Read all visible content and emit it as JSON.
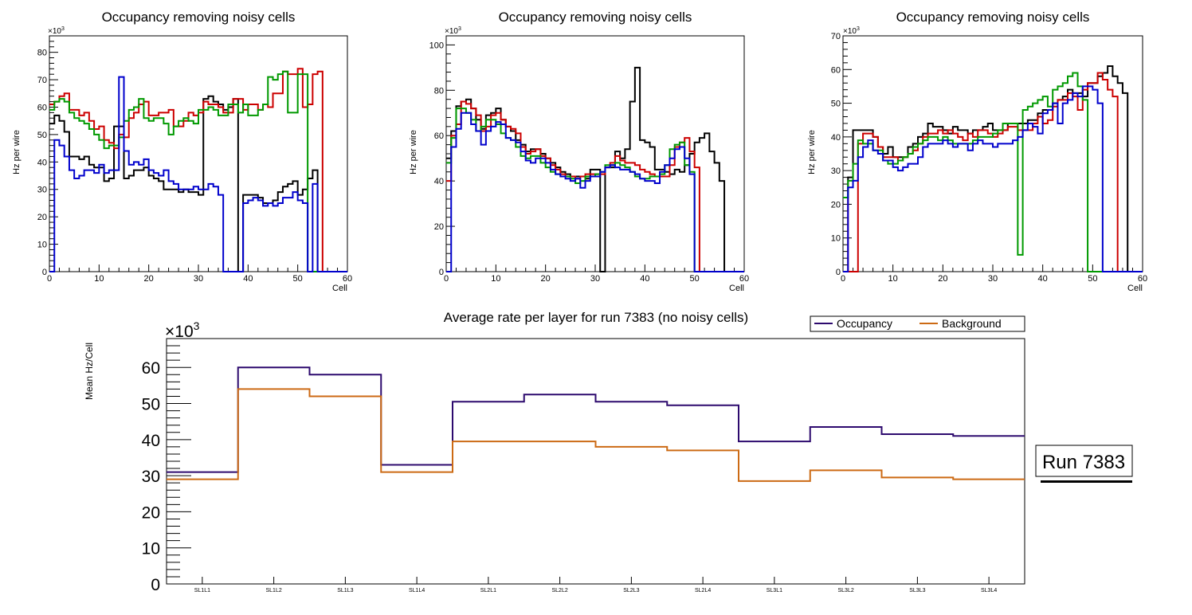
{
  "panels": [
    {
      "title": "Occupancy removing noisy cells",
      "ylabel": "Hz per wire",
      "xlabel": "Cell",
      "yexp": "×10",
      "yexp_power": "3"
    },
    {
      "title": "Occupancy removing noisy cells",
      "ylabel": "Hz per wire",
      "xlabel": "Cell",
      "yexp": "×10",
      "yexp_power": "3"
    },
    {
      "title": "Occupancy removing noisy cells",
      "ylabel": "Hz per wire",
      "xlabel": "Cell",
      "yexp": "×10",
      "yexp_power": "3"
    }
  ],
  "summary": {
    "title": "Average rate per layer for run 7383 (no noisy cells)",
    "ylabel": "Mean Hz/Cell",
    "yexp": "×10",
    "yexp_power": "3",
    "legend": [
      {
        "label": "Occupancy",
        "color": "#2d0a6e"
      },
      {
        "label": "Background",
        "color": "#cc6a14"
      }
    ],
    "run_label": "Run 7383"
  },
  "chart_data": [
    {
      "type": "line",
      "style": "step-histogram",
      "title": "Occupancy removing noisy cells",
      "xlabel": "Cell",
      "ylabel": "Hz per wire (×10^3)",
      "xlim": [
        0,
        60
      ],
      "ylim": [
        0,
        86
      ],
      "xticks": [
        0,
        10,
        20,
        30,
        40,
        50,
        60
      ],
      "yticks": [
        0,
        10,
        20,
        30,
        40,
        50,
        60,
        70,
        80
      ],
      "x_bin_start": 0,
      "x_bin_width": 1,
      "series": [
        {
          "name": "layer-black",
          "color": "#000000",
          "values": [
            54,
            57,
            55,
            51,
            42,
            42,
            41,
            42,
            39,
            38,
            38,
            33,
            34,
            53,
            53,
            34,
            35,
            37,
            37,
            38,
            35,
            34,
            33,
            30,
            30,
            30,
            29,
            30,
            29,
            29,
            28,
            63,
            64,
            62,
            61,
            59,
            60,
            63,
            0,
            28,
            28,
            28,
            27,
            25,
            25,
            26,
            29,
            31,
            32,
            33,
            28,
            30,
            34,
            37,
            0,
            0,
            0,
            0,
            0,
            0
          ]
        },
        {
          "name": "layer-red",
          "color": "#cc0000",
          "values": [
            61,
            62,
            64,
            65,
            59,
            59,
            57,
            58,
            55,
            52,
            53,
            48,
            47,
            45,
            50,
            49,
            56,
            58,
            61,
            62,
            57,
            57,
            58,
            58,
            59,
            53,
            53,
            55,
            58,
            57,
            58,
            62,
            61,
            61,
            60,
            58,
            58,
            63,
            63,
            59,
            61,
            61,
            59,
            61,
            60,
            65,
            65,
            73,
            72,
            72,
            74,
            60,
            61,
            72,
            73,
            0,
            0,
            0,
            0,
            0
          ]
        },
        {
          "name": "layer-green",
          "color": "#009900",
          "values": [
            59,
            62,
            63,
            62,
            58,
            56,
            55,
            54,
            52,
            50,
            48,
            45,
            46,
            46,
            49,
            55,
            59,
            60,
            63,
            56,
            55,
            56,
            56,
            54,
            50,
            53,
            55,
            56,
            55,
            54,
            59,
            59,
            60,
            59,
            57,
            57,
            61,
            61,
            58,
            61,
            57,
            57,
            59,
            61,
            71,
            70,
            72,
            73,
            58,
            58,
            72,
            72,
            0,
            0,
            0,
            0,
            0,
            0,
            0,
            0
          ]
        },
        {
          "name": "layer-blue",
          "color": "#0000cc",
          "values": [
            0,
            48,
            46,
            42,
            37,
            34,
            35,
            37,
            37,
            36,
            39,
            36,
            37,
            37,
            71,
            44,
            39,
            40,
            39,
            41,
            37,
            36,
            35,
            37,
            33,
            32,
            30,
            30,
            30,
            31,
            30,
            30,
            32,
            31,
            28,
            0,
            0,
            0,
            0,
            25,
            26,
            27,
            26,
            24,
            25,
            24,
            25,
            27,
            27,
            29,
            26,
            25,
            0,
            32,
            0,
            0,
            0,
            0,
            0,
            0
          ]
        }
      ]
    },
    {
      "type": "line",
      "style": "step-histogram",
      "title": "Occupancy removing noisy cells",
      "xlabel": "Cell",
      "ylabel": "Hz per wire (×10^3)",
      "xlim": [
        0,
        60
      ],
      "ylim": [
        0,
        104
      ],
      "xticks": [
        0,
        10,
        20,
        30,
        40,
        50,
        60
      ],
      "yticks": [
        0,
        20,
        40,
        60,
        80,
        100
      ],
      "x_bin_start": 0,
      "x_bin_width": 1,
      "series": [
        {
          "name": "layer-black",
          "color": "#000000",
          "values": [
            50,
            62,
            73,
            75,
            76,
            72,
            67,
            63,
            69,
            70,
            72,
            67,
            64,
            62,
            58,
            56,
            53,
            54,
            54,
            52,
            50,
            48,
            46,
            44,
            43,
            42,
            42,
            42,
            41,
            45,
            45,
            0,
            46,
            46,
            53,
            50,
            54,
            75,
            90,
            58,
            57,
            55,
            45,
            45,
            44,
            43,
            45,
            44,
            47,
            52,
            57,
            59,
            61,
            53,
            48,
            40,
            0,
            0,
            0,
            0
          ]
        },
        {
          "name": "layer-red",
          "color": "#cc0000",
          "values": [
            40,
            60,
            65,
            75,
            74,
            72,
            69,
            62,
            64,
            69,
            70,
            67,
            64,
            63,
            61,
            55,
            52,
            53,
            54,
            51,
            50,
            47,
            45,
            43,
            42,
            42,
            41,
            42,
            43,
            43,
            43,
            43,
            46,
            48,
            51,
            49,
            48,
            48,
            47,
            45,
            44,
            43,
            42,
            42,
            42,
            47,
            55,
            57,
            59,
            53,
            46,
            0,
            0,
            0,
            0,
            0,
            0,
            0,
            0,
            0
          ]
        },
        {
          "name": "layer-green",
          "color": "#009900",
          "values": [
            48,
            59,
            72,
            72,
            70,
            67,
            62,
            64,
            67,
            67,
            65,
            61,
            59,
            58,
            55,
            51,
            50,
            51,
            51,
            48,
            46,
            44,
            43,
            42,
            42,
            41,
            39,
            40,
            42,
            42,
            43,
            44,
            47,
            47,
            48,
            47,
            46,
            44,
            42,
            41,
            41,
            42,
            42,
            43,
            47,
            54,
            56,
            57,
            47,
            44,
            0,
            0,
            0,
            0,
            0,
            0,
            0,
            0,
            0,
            0
          ]
        },
        {
          "name": "layer-blue",
          "color": "#0000cc",
          "values": [
            0,
            55,
            63,
            70,
            70,
            65,
            62,
            56,
            62,
            64,
            66,
            65,
            59,
            58,
            57,
            53,
            49,
            48,
            50,
            50,
            48,
            45,
            43,
            42,
            41,
            40,
            41,
            37,
            40,
            42,
            42,
            44,
            46,
            47,
            46,
            45,
            45,
            44,
            43,
            41,
            40,
            40,
            39,
            44,
            47,
            50,
            54,
            55,
            50,
            43,
            0,
            0,
            0,
            0,
            0,
            0,
            0,
            0,
            0,
            0
          ]
        }
      ]
    },
    {
      "type": "line",
      "style": "step-histogram",
      "title": "Occupancy removing noisy cells",
      "xlabel": "Cell",
      "ylabel": "Hz per wire (×10^3)",
      "xlim": [
        0,
        60
      ],
      "ylim": [
        0,
        70
      ],
      "xticks": [
        0,
        10,
        20,
        30,
        40,
        50,
        60
      ],
      "yticks": [
        0,
        10,
        20,
        30,
        40,
        50,
        60,
        70
      ],
      "x_bin_start": 0,
      "x_bin_width": 1,
      "series": [
        {
          "name": "layer-black",
          "color": "#000000",
          "values": [
            22,
            28,
            42,
            42,
            42,
            42,
            40,
            37,
            35,
            37,
            34,
            34,
            34,
            37,
            38,
            40,
            41,
            44,
            43,
            43,
            42,
            41,
            43,
            42,
            42,
            41,
            42,
            42,
            43,
            44,
            42,
            42,
            42,
            44,
            44,
            44,
            44,
            45,
            45,
            47,
            48,
            48,
            50,
            51,
            52,
            54,
            53,
            53,
            52,
            56,
            56,
            58,
            59,
            61,
            58,
            56,
            53,
            0,
            0,
            0
          ]
        },
        {
          "name": "layer-red",
          "color": "#cc0000",
          "values": [
            22,
            0,
            0,
            38,
            41,
            41,
            40,
            37,
            34,
            34,
            34,
            33,
            34,
            35,
            36,
            38,
            40,
            41,
            41,
            42,
            41,
            42,
            41,
            40,
            39,
            41,
            40,
            42,
            42,
            41,
            40,
            41,
            42,
            43,
            43,
            42,
            42,
            42,
            44,
            46,
            44,
            45,
            49,
            51,
            51,
            53,
            52,
            48,
            54,
            56,
            56,
            59,
            57,
            54,
            52,
            0,
            0,
            0,
            0,
            0
          ]
        },
        {
          "name": "layer-green",
          "color": "#009900",
          "values": [
            22,
            27,
            32,
            39,
            38,
            38,
            36,
            36,
            33,
            32,
            32,
            33,
            34,
            35,
            37,
            38,
            39,
            40,
            40,
            39,
            40,
            39,
            38,
            38,
            38,
            38,
            39,
            40,
            40,
            40,
            41,
            42,
            44,
            44,
            44,
            5,
            48,
            49,
            50,
            51,
            52,
            49,
            54,
            55,
            56,
            58,
            59,
            55,
            51,
            0,
            0,
            0,
            0,
            0,
            0,
            0,
            0,
            0,
            0,
            0
          ]
        },
        {
          "name": "layer-blue",
          "color": "#0000cc",
          "values": [
            0,
            25,
            27,
            34,
            37,
            39,
            36,
            35,
            33,
            33,
            31,
            30,
            31,
            32,
            32,
            34,
            37,
            38,
            38,
            38,
            39,
            38,
            37,
            38,
            38,
            36,
            38,
            39,
            38,
            38,
            37,
            38,
            38,
            38,
            39,
            40,
            42,
            44,
            43,
            41,
            47,
            48,
            50,
            44,
            50,
            51,
            53,
            52,
            55,
            55,
            54,
            50,
            0,
            0,
            0,
            0,
            0,
            0,
            0,
            0
          ]
        }
      ]
    },
    {
      "type": "line",
      "style": "step-histogram",
      "title": "Average rate per layer for run 7383 (no noisy cells)",
      "xlabel": "",
      "ylabel": "Mean Hz/Cell (×10^3)",
      "ylim": [
        0,
        68
      ],
      "yticks": [
        0,
        10,
        20,
        30,
        40,
        50,
        60
      ],
      "categories": [
        "SL1L1",
        "SL1L2",
        "SL1L3",
        "SL1L4",
        "SL2L1",
        "SL2L2",
        "SL2L3",
        "SL2L4",
        "SL3L1",
        "SL3L2",
        "SL3L3",
        "SL3L4"
      ],
      "legend_position": "top-right",
      "series": [
        {
          "name": "Occupancy",
          "color": "#2d0a6e",
          "values": [
            31,
            60,
            58,
            33,
            50.5,
            52.5,
            50.5,
            49.5,
            39.5,
            43.5,
            41.5,
            41
          ]
        },
        {
          "name": "Background",
          "color": "#cc6a14",
          "values": [
            29,
            54,
            52,
            31,
            39.5,
            39.5,
            38,
            37,
            28.5,
            31.5,
            29.5,
            29
          ]
        }
      ]
    }
  ]
}
